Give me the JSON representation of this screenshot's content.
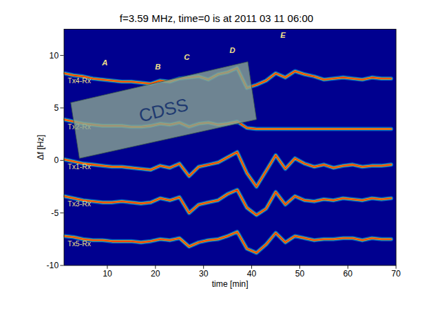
{
  "chart_data": {
    "type": "line",
    "title": "f=3.59 MHz,  time=0 is at 2011 03 11 06:00",
    "x_label": "time [min]",
    "y_label": "Δf [Hz]",
    "xlim": [
      1,
      70
    ],
    "xticks": [
      10,
      20,
      30,
      40,
      50,
      60,
      70
    ],
    "ylim": [
      -10,
      12.5
    ],
    "yticks": [
      -10,
      -5,
      0,
      5,
      10
    ],
    "grid": false,
    "x": [
      1,
      3,
      5,
      7,
      9,
      11,
      13,
      15,
      17,
      19,
      21,
      23,
      25,
      27,
      29,
      31,
      33,
      35,
      37,
      39,
      41,
      43,
      45,
      47,
      49,
      51,
      53,
      55,
      57,
      59,
      61,
      63,
      65,
      67,
      69
    ],
    "series": [
      {
        "name": "Tx4-Rx",
        "color": "#ff3000",
        "values": [
          8.3,
          8.1,
          8.0,
          7.8,
          7.7,
          7.6,
          7.5,
          7.5,
          7.4,
          7.3,
          7.6,
          7.5,
          7.8,
          7.9,
          8.0,
          7.7,
          8.2,
          8.4,
          8.8,
          6.9,
          7.2,
          7.6,
          8.3,
          7.9,
          8.5,
          8.2,
          8.0,
          7.7,
          7.8,
          7.9,
          7.8,
          7.7,
          7.9,
          7.8,
          7.8
        ]
      },
      {
        "name": "Tx2-Rx",
        "color": "#ff3000",
        "values": [
          3.9,
          3.7,
          3.5,
          3.4,
          3.3,
          3.3,
          3.3,
          3.2,
          3.2,
          3.3,
          3.5,
          3.4,
          3.6,
          3.2,
          3.5,
          3.6,
          3.4,
          3.5,
          3.7,
          3.1,
          3.0,
          3.0,
          3.0,
          3.0,
          3.0,
          3.0,
          3.0,
          3.0,
          3.0,
          3.0,
          3.0,
          3.0,
          3.0,
          3.0,
          3.0
        ]
      },
      {
        "name": "Tx1-Rx",
        "color": "#ff3000",
        "values": [
          0.1,
          -0.1,
          -0.3,
          -0.4,
          -0.5,
          -0.6,
          -0.6,
          -0.7,
          -0.8,
          -0.9,
          -0.5,
          -0.7,
          -0.3,
          -1.5,
          -0.6,
          -0.4,
          -0.2,
          0.3,
          0.8,
          -1.2,
          -2.5,
          -1.0,
          0.5,
          -0.8,
          0.2,
          -0.3,
          -0.6,
          -0.4,
          -0.7,
          -0.5,
          -0.4,
          -0.6,
          -0.5,
          -0.5,
          -0.4
        ]
      },
      {
        "name": "Tx3-Rx",
        "color": "#ff3000",
        "values": [
          -3.4,
          -3.6,
          -3.8,
          -3.9,
          -4.0,
          -4.0,
          -3.9,
          -4.0,
          -4.1,
          -4.0,
          -3.6,
          -3.8,
          -3.5,
          -5.0,
          -4.2,
          -4.0,
          -3.8,
          -3.2,
          -2.8,
          -4.5,
          -5.2,
          -4.6,
          -3.0,
          -4.2,
          -3.4,
          -3.8,
          -3.9,
          -3.7,
          -3.8,
          -3.6,
          -3.7,
          -3.8,
          -3.6,
          -3.7,
          -3.6
        ]
      },
      {
        "name": "Tx5-Rx",
        "color": "#ff3000",
        "values": [
          -7.2,
          -7.3,
          -7.5,
          -7.6,
          -7.6,
          -7.7,
          -7.7,
          -7.7,
          -7.8,
          -7.7,
          -7.5,
          -7.6,
          -7.4,
          -8.2,
          -7.8,
          -7.6,
          -7.5,
          -7.2,
          -6.8,
          -8.4,
          -8.8,
          -8.0,
          -6.9,
          -7.8,
          -7.2,
          -7.4,
          -7.6,
          -7.5,
          -7.5,
          -7.4,
          -7.4,
          -7.6,
          -7.4,
          -7.5,
          -7.5
        ]
      }
    ],
    "annotations": [
      {
        "text": "A",
        "x": 9.5,
        "y": 9.3
      },
      {
        "text": "B",
        "x": 20.5,
        "y": 8.9
      },
      {
        "text": "C",
        "x": 26.5,
        "y": 9.8
      },
      {
        "text": "D",
        "x": 36,
        "y": 10.5
      },
      {
        "text": "E",
        "x": 46.5,
        "y": 11.9
      }
    ],
    "box": {
      "text": "CDSS",
      "x": [
        2.4,
        39.2,
        41.0,
        4.2,
        2.4
      ],
      "y": [
        5.5,
        9.4,
        3.9,
        0.2,
        5.5
      ]
    }
  }
}
